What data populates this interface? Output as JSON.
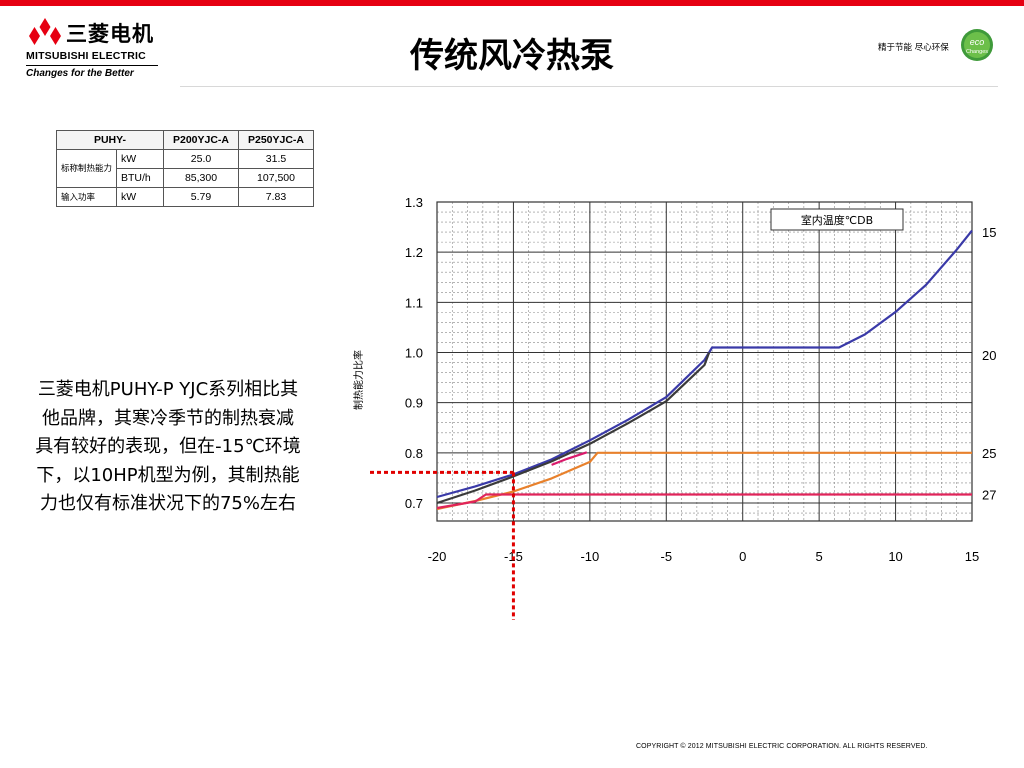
{
  "header": {
    "logo_cn": "三菱电机",
    "logo_en": "MITSUBISHI ELECTRIC",
    "logo_tagline": "Changes for the Better",
    "title": "传统风冷热泵",
    "eco_slogan": "精于节能 尽心环保",
    "eco_badge_top": "eco",
    "eco_badge_bottom": "Changes"
  },
  "spec_table": {
    "model_prefix": "PUHY-",
    "models": [
      "P200YJC-A",
      "P250YJC-A"
    ],
    "rows": [
      {
        "label": "标称制热能力",
        "unit": "kW",
        "values": [
          "25.0",
          "31.5"
        ]
      },
      {
        "label": "",
        "unit": "BTU/h",
        "values": [
          "85,300",
          "107,500"
        ]
      },
      {
        "label": "输入功率",
        "unit": "kW",
        "values": [
          "5.79",
          "7.83"
        ]
      }
    ]
  },
  "caption": "三菱电机PUHY-P YJC系列相比其他品牌，其寒冷季节的制热衰减具有较好的表现，但在-15℃环境下，以10HP机型为例，其制热能力也仅有标准状况下的75%左右",
  "chart_data": {
    "type": "line",
    "title": "",
    "xlabel": "",
    "ylabel": "制热能力比率",
    "legend_title": "室内温度℃DB",
    "xlim": [
      -20,
      15
    ],
    "ylim": [
      0.66,
      1.3
    ],
    "x_ticks": [
      -20,
      -15,
      -10,
      -5,
      0,
      5,
      10,
      15
    ],
    "y_ticks": [
      0.7,
      0.8,
      0.9,
      1.0,
      1.1,
      1.2,
      1.3
    ],
    "grid": true,
    "series": [
      {
        "name": "15",
        "color": "#3a3aa8",
        "x": [
          -20,
          -17.5,
          -15,
          -12.5,
          -10,
          -7.5,
          -5,
          -2.5,
          -2.0,
          0,
          2.5,
          5,
          6.3,
          8,
          10,
          12,
          14,
          15
        ],
        "y": [
          0.712,
          0.733,
          0.757,
          0.787,
          0.825,
          0.866,
          0.911,
          0.985,
          1.01,
          1.01,
          1.01,
          1.01,
          1.01,
          1.036,
          1.081,
          1.135,
          1.205,
          1.243
        ]
      },
      {
        "name": "15_dark",
        "color": "#3a3a3a",
        "x": [
          -20,
          -17.5,
          -15,
          -12.5,
          -10,
          -7.5,
          -5,
          -2.5,
          -2.2
        ],
        "y": [
          0.7,
          0.725,
          0.753,
          0.783,
          0.818,
          0.859,
          0.903,
          0.975,
          1.0
        ]
      },
      {
        "name": "20",
        "color": "#e8812c",
        "x": [
          -20,
          -17.5,
          -15,
          -12.5,
          -10,
          -9.5,
          -5,
          0,
          5,
          10,
          15
        ],
        "y": [
          0.688,
          0.704,
          0.723,
          0.749,
          0.782,
          0.8,
          0.8,
          0.8,
          0.8,
          0.8,
          0.8
        ]
      },
      {
        "name": "25",
        "color": "#e0245a",
        "x": [
          -20,
          -17.5,
          -16.8,
          -15,
          -10,
          -5,
          0,
          5,
          10,
          15
        ],
        "y": [
          0.69,
          0.703,
          0.717,
          0.717,
          0.717,
          0.717,
          0.717,
          0.717,
          0.717,
          0.717
        ]
      },
      {
        "name": "27",
        "color": "#d91a6b",
        "x": [
          -12.5,
          -11.5,
          -10.2
        ],
        "y": [
          0.776,
          0.788,
          0.801
        ]
      }
    ],
    "right_labels": [
      {
        "text": "15",
        "y": 1.24
      },
      {
        "text": "20",
        "y": 0.995
      },
      {
        "text": "25",
        "y": 0.8
      },
      {
        "text": "27",
        "y": 0.717
      }
    ],
    "annotation": {
      "color": "#e00000",
      "x": -15,
      "y": 0.757
    }
  },
  "footer": {
    "copyright": "COPYRIGHT © 2012 MITSUBISHI ELECTRIC CORPORATION. ALL RIGHTS RESERVED."
  }
}
